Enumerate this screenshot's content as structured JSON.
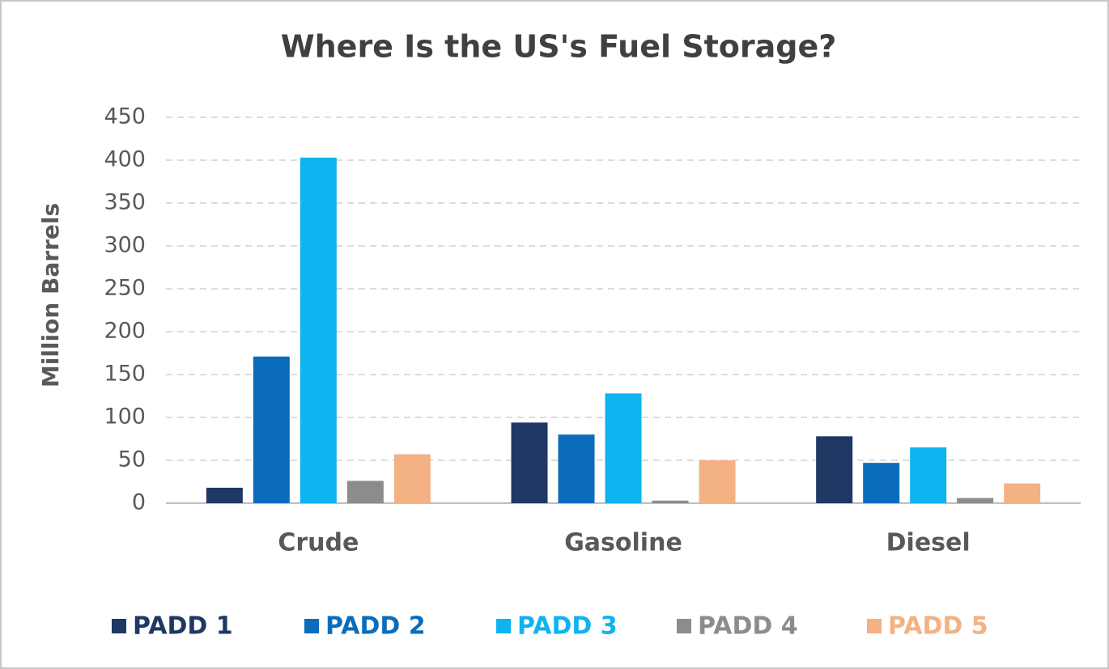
{
  "chart_data": {
    "type": "bar",
    "title": "Where Is the US's Fuel Storage?",
    "y_label": "Million Barrels",
    "categories": [
      "Crude",
      "Gasoline",
      "Diesel"
    ],
    "series": [
      {
        "name": "PADD 1",
        "color": "#1f3864",
        "values": [
          18,
          94,
          78
        ]
      },
      {
        "name": "PADD 2",
        "color": "#0b6cbc",
        "values": [
          171,
          80,
          47
        ]
      },
      {
        "name": "PADD 3",
        "color": "#0fb3ef",
        "values": [
          403,
          128,
          65
        ]
      },
      {
        "name": "PADD 4",
        "color": "#8c8c8c",
        "values": [
          26,
          3,
          6
        ]
      },
      {
        "name": "PADD 5",
        "color": "#f4b183",
        "values": [
          57,
          50,
          23
        ]
      }
    ],
    "ylim": [
      0,
      450
    ],
    "yticks": [
      0,
      50,
      100,
      150,
      200,
      250,
      300,
      350,
      400,
      450
    ],
    "grid": true,
    "legend": "bottom"
  }
}
